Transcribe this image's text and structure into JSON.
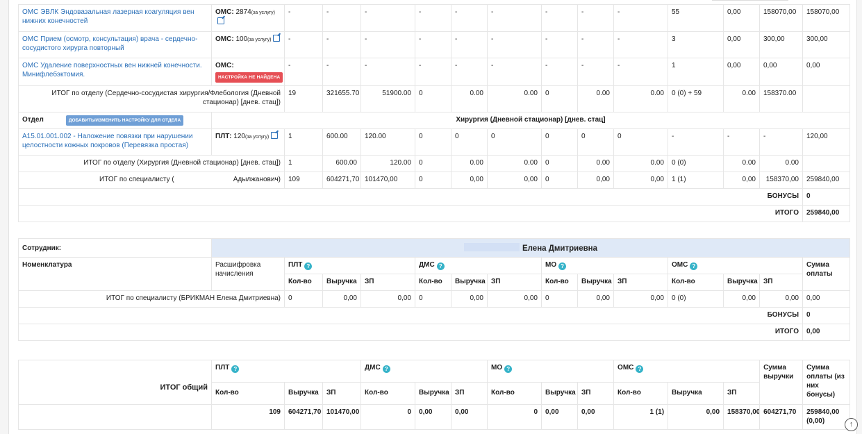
{
  "rows1": [
    {
      "name": "ОМС ЭВЛК Эндовазальная лазерная коагуляция вен нижних конечностей",
      "pay": "ОМС:",
      "num": "2874",
      "unit": "(за услугу)",
      "c": [
        "-",
        "-",
        "-",
        "-",
        "-",
        "-",
        "-",
        "-",
        "-",
        "55",
        "0,00",
        "158070,00",
        "158070,00"
      ]
    },
    {
      "name": "ОМС Прием (осмотр, консультация) врача - сердечно-сосудистого хирурга повторный",
      "pay": "ОМС:",
      "num": "100",
      "unit": "(за услугу)",
      "c": [
        "-",
        "-",
        "-",
        "-",
        "-",
        "-",
        "-",
        "-",
        "-",
        "3",
        "0,00",
        "300,00",
        "300,00"
      ]
    },
    {
      "name": "ОМС Удаление поверхностных вен нижней конечности. Минифлебэктомия.",
      "pay": "ОМС:",
      "tag": "НАСТРОЙКА НЕ НАЙДЕНА",
      "c": [
        "-",
        "-",
        "-",
        "-",
        "-",
        "-",
        "-",
        "-",
        "-",
        "1",
        "0,00",
        "0,00",
        "0,00"
      ]
    }
  ],
  "dept_total1": {
    "label": "ИТОГ по отделу (Сердечно-сосудистая хирургия/Флебология (Дневной стационар) [днев. стац])",
    "c": [
      "19",
      "321655.70",
      "51900.00",
      "0",
      "0.00",
      "0.00",
      "0",
      "0.00",
      "0.00",
      "0 (0) + 59",
      "0.00",
      "158370.00",
      ""
    ]
  },
  "dept2": {
    "label": "Отдел",
    "btn": "ДОБАВИТЬ/ИЗМЕНИТЬ НАСТРОЙКУ ДЛЯ ОТДЕЛА",
    "name": "Хирургия (Дневной стационар) [днев. стац]"
  },
  "row2": {
    "name": "A15.01.001.002 - Наложение повязки при нарушении целостности кожных покровов (Перевязка простая)",
    "pay": "ПЛТ:",
    "num": "120",
    "unit": "(за услугу)",
    "c": [
      "1",
      "600.00",
      "120.00",
      "0",
      "0",
      "0",
      "0",
      "0",
      "0",
      "-",
      "-",
      "-",
      "120,00"
    ]
  },
  "dept_total2": {
    "label": "ИТОГ по отделу (Хирургия (Дневной стационар) [днев. стац])",
    "c": [
      "1",
      "600.00",
      "120.00",
      "0",
      "0.00",
      "0.00",
      "0",
      "0.00",
      "0.00",
      "0 (0)",
      "0.00",
      "0.00",
      ""
    ]
  },
  "spec_total1": {
    "label_a": "ИТОГ по специалисту (",
    "label_b": "Адылжанович)",
    "c": [
      "109",
      "604271,70",
      "101470,00",
      "0",
      "0,00",
      "0,00",
      "0",
      "0,00",
      "0,00",
      "1 (1)",
      "0,00",
      "158370,00",
      "259840,00"
    ]
  },
  "bonus1": {
    "label": "БОНУСЫ",
    "value": "0"
  },
  "itogo1": {
    "label": "ИТОГО",
    "value": "259840,00"
  },
  "emp": {
    "label": "Сотрудник:",
    "name": "Елена Дмитриевна"
  },
  "header": {
    "nom": "Номенклатура",
    "decode": "Расшифровка начисления",
    "plt": "ПЛТ",
    "dms": "ДМС",
    "mo": "МО",
    "oms": "ОМС",
    "sum": "Сумма оплаты",
    "qty": "Кол-во",
    "rev": "Выручка",
    "zp": "ЗП"
  },
  "spec_total2": {
    "label": "ИТОГ по специалисту (БРИКМАН Елена Дмитриевна)",
    "c": [
      "0",
      "0,00",
      "0,00",
      "0",
      "0,00",
      "0,00",
      "0",
      "0,00",
      "0,00",
      "0 (0)",
      "0,00",
      "0,00",
      "0,00"
    ]
  },
  "bonus2": {
    "label": "БОНУСЫ",
    "value": "0"
  },
  "itogo2": {
    "label": "ИТОГО",
    "value": "0,00"
  },
  "overall": {
    "label": "ИТОГ общий",
    "sum_rev": "Сумма выручки",
    "sum_pay": "Сумма оплаты (из них бонусы)",
    "c": [
      "109",
      "604271,70",
      "101470,00",
      "0",
      "0,00",
      "0,00",
      "0",
      "0,00",
      "0,00",
      "1 (1)",
      "0,00",
      "158370,00",
      "604271,70",
      "259840,00 (0,00)"
    ]
  }
}
